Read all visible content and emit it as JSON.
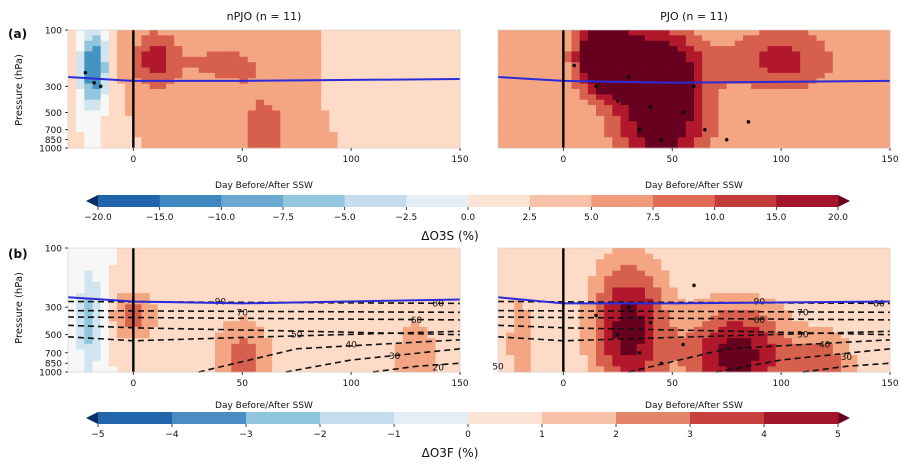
{
  "figure": {
    "row_a_label": "(a)",
    "row_b_label": "(b)",
    "panel_titles": [
      "nPJO (n = 11)",
      "PJO (n = 11)"
    ],
    "ylabel": "Pressure (hPa)",
    "xlabel": "Day Before/After SSW",
    "y_ticks": [
      "100",
      "300",
      "500",
      "700",
      "850",
      "1000"
    ],
    "x_ticks": [
      "0",
      "50",
      "100",
      "150"
    ],
    "colorbar_a": {
      "label": "ΔO3S (%)",
      "ticks": [
        "−20.0",
        "−15.0",
        "−10.0",
        "−7.5",
        "−5.0",
        "−2.5",
        "0.0",
        "2.5",
        "5.0",
        "7.5",
        "10.0",
        "15.0",
        "20.0"
      ]
    },
    "colorbar_b": {
      "label": "ΔO3F (%)",
      "ticks": [
        "−5",
        "−4",
        "−3",
        "−2",
        "−1",
        "0",
        "1",
        "2",
        "3",
        "4",
        "5"
      ]
    },
    "palette": [
      "#053061",
      "#2166ac",
      "#4393c3",
      "#92c5de",
      "#d1e5f0",
      "#f7f7f7",
      "#fddbc7",
      "#f4a582",
      "#d6604d",
      "#b2182b",
      "#67001f"
    ]
  },
  "chart_data": [
    {
      "type": "heatmap",
      "panel": "a-nPJO",
      "title": "nPJO (n = 11)",
      "xlabel": "Day Before/After SSW",
      "ylabel": "Pressure (hPa)",
      "xlim": [
        -30,
        150
      ],
      "ylim": [
        1000,
        100
      ],
      "y_scale": "log",
      "colorbar_label": "ΔO3S (%)",
      "levels": [
        -20,
        -15,
        -10,
        -7.5,
        -5,
        -2.5,
        0,
        2.5,
        5,
        7.5,
        10,
        15,
        20
      ],
      "blobs": [
        {
          "x": -18,
          "p": 200,
          "value": -12,
          "sx": 9,
          "sy": 0.45
        },
        {
          "x": -20,
          "p": 600,
          "value": -3,
          "sx": 12,
          "sy": 1.0
        },
        {
          "x": 10,
          "p": 180,
          "value": 6,
          "sx": 15,
          "sy": 0.35
        },
        {
          "x": 40,
          "p": 190,
          "value": 3,
          "sx": 30,
          "sy": 0.3
        },
        {
          "x": 60,
          "p": 700,
          "value": 3,
          "sx": 25,
          "sy": 0.7
        },
        {
          "x": 120,
          "p": 300,
          "value": -1.5,
          "sx": 35,
          "sy": 0.5
        }
      ],
      "tropopause": [
        [
          -30,
          250
        ],
        [
          0,
          270
        ],
        [
          50,
          270
        ],
        [
          150,
          260
        ]
      ],
      "stipples": [
        [
          -22,
          230
        ],
        [
          -15,
          300
        ],
        [
          -18,
          280
        ]
      ]
    },
    {
      "type": "heatmap",
      "panel": "a-PJO",
      "title": "PJO (n = 11)",
      "xlabel": "Day Before/After SSW",
      "ylabel": "Pressure (hPa)",
      "xlim": [
        -30,
        150
      ],
      "ylim": [
        1000,
        100
      ],
      "y_scale": "log",
      "colorbar_label": "ΔO3S (%)",
      "levels": [
        -20,
        -15,
        -10,
        -7.5,
        -5,
        -2.5,
        0,
        2.5,
        5,
        7.5,
        10,
        15,
        20
      ],
      "blobs": [
        {
          "x": 20,
          "p": 170,
          "value": 18,
          "sx": 18,
          "sy": 0.4
        },
        {
          "x": 45,
          "p": 220,
          "value": 10,
          "sx": 25,
          "sy": 0.5
        },
        {
          "x": 45,
          "p": 650,
          "value": 9,
          "sx": 30,
          "sy": 0.7
        },
        {
          "x": 100,
          "p": 180,
          "value": 6,
          "sx": 35,
          "sy": 0.4
        },
        {
          "x": -15,
          "p": 500,
          "value": 2,
          "sx": 15,
          "sy": 1.0
        }
      ],
      "tropopause": [
        [
          -30,
          250
        ],
        [
          0,
          270
        ],
        [
          50,
          280
        ],
        [
          150,
          270
        ]
      ],
      "stipples": [
        [
          5,
          200
        ],
        [
          15,
          300
        ],
        [
          25,
          400
        ],
        [
          35,
          700
        ],
        [
          45,
          850
        ],
        [
          55,
          500
        ],
        [
          65,
          700
        ],
        [
          75,
          850
        ],
        [
          85,
          600
        ],
        [
          30,
          250
        ],
        [
          40,
          450
        ],
        [
          60,
          300
        ]
      ]
    },
    {
      "type": "heatmap",
      "panel": "b-nPJO",
      "title": "",
      "xlabel": "Day Before/After SSW",
      "ylabel": "Pressure (hPa)",
      "xlim": [
        -30,
        150
      ],
      "ylim": [
        1000,
        100
      ],
      "y_scale": "log",
      "colorbar_label": "ΔO3F (%)",
      "levels": [
        -5,
        -4,
        -3,
        -2,
        -1,
        0,
        1,
        2,
        3,
        4,
        5
      ],
      "blobs": [
        {
          "x": -20,
          "p": 400,
          "value": -2.5,
          "sx": 8,
          "sy": 0.6
        },
        {
          "x": 0,
          "p": 350,
          "value": 2.5,
          "sx": 15,
          "sy": 0.3
        },
        {
          "x": 50,
          "p": 800,
          "value": 2.5,
          "sx": 20,
          "sy": 0.5
        },
        {
          "x": 130,
          "p": 800,
          "value": 2,
          "sx": 15,
          "sy": 0.5
        }
      ],
      "tropopause": [
        [
          -30,
          250
        ],
        [
          0,
          270
        ],
        [
          50,
          280
        ],
        [
          150,
          260
        ]
      ],
      "contour_labels": [
        {
          "text": "90",
          "x": 40,
          "p": 270
        },
        {
          "text": "80",
          "x": 140,
          "p": 280
        },
        {
          "text": "70",
          "x": 50,
          "p": 330
        },
        {
          "text": "60",
          "x": 130,
          "p": 380
        },
        {
          "text": "50",
          "x": 75,
          "p": 500
        },
        {
          "text": "40",
          "x": 100,
          "p": 600
        },
        {
          "text": "30",
          "x": 120,
          "p": 740
        },
        {
          "text": "20",
          "x": 140,
          "p": 920
        }
      ],
      "contours": [
        [
          [
            -30,
            270
          ],
          [
            150,
            280
          ]
        ],
        [
          [
            -30,
            320
          ],
          [
            150,
            330
          ]
        ],
        [
          [
            -30,
            360
          ],
          [
            150,
            380
          ]
        ],
        [
          [
            -30,
            420
          ],
          [
            0,
            440
          ],
          [
            80,
            470
          ],
          [
            150,
            500
          ]
        ],
        [
          [
            -30,
            520
          ],
          [
            0,
            560
          ],
          [
            60,
            520
          ],
          [
            150,
            470
          ]
        ],
        [
          [
            30,
            1000
          ],
          [
            75,
            650
          ],
          [
            150,
            550
          ]
        ],
        [
          [
            70,
            1000
          ],
          [
            100,
            800
          ],
          [
            150,
            650
          ]
        ],
        [
          [
            110,
            1000
          ],
          [
            130,
            900
          ],
          [
            150,
            850
          ]
        ]
      ]
    },
    {
      "type": "heatmap",
      "panel": "b-PJO",
      "title": "",
      "xlabel": "Day Before/After SSW",
      "ylabel": "Pressure (hPa)",
      "xlim": [
        -30,
        150
      ],
      "ylim": [
        1000,
        100
      ],
      "y_scale": "log",
      "colorbar_label": "ΔO3F (%)",
      "levels": [
        -5,
        -4,
        -3,
        -2,
        -1,
        0,
        1,
        2,
        3,
        4,
        5
      ],
      "blobs": [
        {
          "x": 30,
          "p": 450,
          "value": 4.5,
          "sx": 25,
          "sy": 0.8
        },
        {
          "x": 80,
          "p": 750,
          "value": 4.5,
          "sx": 35,
          "sy": 0.6
        },
        {
          "x": 120,
          "p": 900,
          "value": 2.5,
          "sx": 20,
          "sy": 0.4
        },
        {
          "x": -20,
          "p": 600,
          "value": 1.5,
          "sx": 10,
          "sy": 0.8
        }
      ],
      "tropopause": [
        [
          -30,
          250
        ],
        [
          0,
          280
        ],
        [
          50,
          280
        ],
        [
          150,
          270
        ]
      ],
      "stipples": [
        [
          15,
          350
        ],
        [
          25,
          500
        ],
        [
          35,
          700
        ],
        [
          45,
          850
        ],
        [
          55,
          600
        ],
        [
          30,
          300
        ],
        [
          40,
          400
        ],
        [
          60,
          200
        ]
      ],
      "contour_labels": [
        {
          "text": "90",
          "x": 90,
          "p": 270
        },
        {
          "text": "80",
          "x": 145,
          "p": 280
        },
        {
          "text": "70",
          "x": 110,
          "p": 330
        },
        {
          "text": "60",
          "x": 90,
          "p": 380
        },
        {
          "text": "50",
          "x": 110,
          "p": 500
        },
        {
          "text": "40",
          "x": 120,
          "p": 600
        },
        {
          "text": "30",
          "x": 130,
          "p": 760
        },
        {
          "text": "50",
          "x": -30,
          "p": 900
        }
      ],
      "contours": [
        [
          [
            -30,
            270
          ],
          [
            150,
            280
          ]
        ],
        [
          [
            -30,
            320
          ],
          [
            150,
            330
          ]
        ],
        [
          [
            -30,
            360
          ],
          [
            150,
            380
          ]
        ],
        [
          [
            -30,
            420
          ],
          [
            0,
            440
          ],
          [
            80,
            470
          ],
          [
            150,
            500
          ]
        ],
        [
          [
            -30,
            520
          ],
          [
            0,
            560
          ],
          [
            60,
            520
          ],
          [
            150,
            470
          ]
        ],
        [
          [
            30,
            1000
          ],
          [
            75,
            650
          ],
          [
            150,
            550
          ]
        ],
        [
          [
            70,
            1000
          ],
          [
            100,
            800
          ],
          [
            150,
            650
          ]
        ],
        [
          [
            110,
            1000
          ],
          [
            130,
            900
          ],
          [
            150,
            850
          ]
        ]
      ]
    }
  ]
}
